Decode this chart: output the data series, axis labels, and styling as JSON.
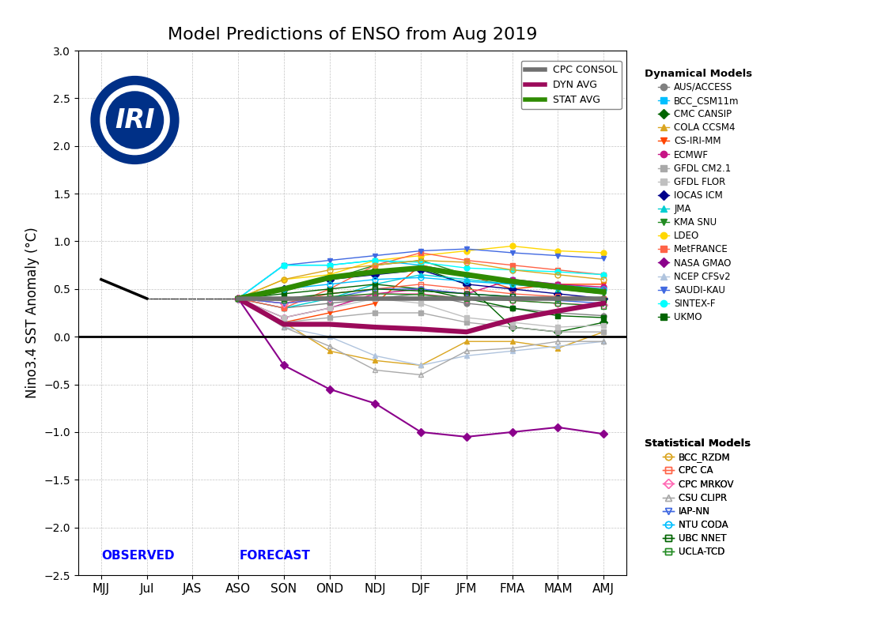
{
  "title": "Model Predictions of ENSO from Aug 2019",
  "ylabel": "Nino3.4 SST Anomaly (°C)",
  "xticks": [
    "MJJ",
    "Jul",
    "JAS",
    "ASO",
    "SON",
    "OND",
    "NDJ",
    "DJF",
    "JFM",
    "FMA",
    "MAM",
    "AMJ"
  ],
  "ylim": [
    -2.5,
    3.0
  ],
  "yticks": [
    -2.5,
    -2.0,
    -1.5,
    -1.0,
    -0.5,
    0.0,
    0.5,
    1.0,
    1.5,
    2.0,
    2.5,
    3.0
  ],
  "cpc_consol": [
    0.4,
    0.4,
    0.4,
    0.4,
    0.4,
    0.4,
    0.4,
    0.4,
    0.4
  ],
  "dyn_avg": [
    0.4,
    0.13,
    0.13,
    0.1,
    0.08,
    0.05,
    0.18,
    0.27,
    0.35
  ],
  "stat_avg": [
    0.4,
    0.5,
    0.62,
    0.68,
    0.72,
    0.65,
    0.58,
    0.52,
    0.47
  ],
  "models": {
    "AUS_ACCESS": {
      "color": "#808080",
      "marker": "o",
      "lw": 1.0,
      "filled": true,
      "data": [
        0.4,
        0.3,
        0.35,
        0.4,
        0.45,
        0.35,
        0.3,
        0.25,
        0.22
      ]
    },
    "BCC_CSM11m": {
      "color": "#00BFFF",
      "marker": "s",
      "lw": 1.0,
      "filled": true,
      "data": [
        0.4,
        0.75,
        0.75,
        0.8,
        0.75,
        0.65,
        0.6,
        0.55,
        0.5
      ]
    },
    "CMC_CANSIP": {
      "color": "#006400",
      "marker": "D",
      "lw": 1.0,
      "filled": true,
      "data": [
        0.4,
        0.5,
        0.6,
        0.7,
        0.72,
        0.55,
        0.1,
        0.05,
        0.15
      ]
    },
    "COLA_CCSM4": {
      "color": "#DAA520",
      "marker": "^",
      "lw": 1.0,
      "filled": true,
      "data": [
        0.4,
        0.15,
        -0.15,
        -0.25,
        -0.3,
        -0.05,
        -0.05,
        -0.12,
        0.05
      ]
    },
    "CS_IRI_MM": {
      "color": "#FF4500",
      "marker": "v",
      "lw": 1.0,
      "filled": true,
      "data": [
        0.4,
        0.15,
        0.25,
        0.35,
        0.75,
        0.65,
        0.5,
        0.55,
        0.55
      ]
    },
    "ECMWF": {
      "color": "#C71585",
      "marker": "o",
      "lw": 1.0,
      "filled": true,
      "data": [
        0.4,
        0.2,
        0.3,
        0.45,
        0.5,
        0.45,
        0.6,
        0.55,
        0.52
      ]
    },
    "GFDL_CM21": {
      "color": "#A9A9A9",
      "marker": "s",
      "lw": 1.0,
      "filled": true,
      "data": [
        0.4,
        0.15,
        0.2,
        0.25,
        0.25,
        0.15,
        0.1,
        0.05,
        0.05
      ]
    },
    "GFDL_FLOR": {
      "color": "#C0C0C0",
      "marker": "s",
      "lw": 1.0,
      "filled": true,
      "data": [
        0.4,
        0.2,
        0.3,
        0.4,
        0.35,
        0.2,
        0.15,
        0.1,
        0.12
      ]
    },
    "IOCAS_ICM": {
      "color": "#00008B",
      "marker": "D",
      "lw": 1.0,
      "filled": true,
      "data": [
        0.4,
        0.5,
        0.6,
        0.65,
        0.7,
        0.55,
        0.5,
        0.45,
        0.4
      ]
    },
    "JMA": {
      "color": "#00CED1",
      "marker": "^",
      "lw": 1.0,
      "filled": true,
      "data": [
        0.4,
        0.3,
        0.4,
        0.55,
        0.65,
        0.6,
        0.55,
        0.5,
        0.48
      ]
    },
    "KMA_SNU": {
      "color": "#228B22",
      "marker": "v",
      "lw": 1.0,
      "filled": true,
      "data": [
        0.4,
        0.5,
        0.6,
        0.75,
        0.8,
        0.65,
        0.55,
        0.5,
        0.45
      ]
    },
    "LDEO": {
      "color": "#FFD700",
      "marker": "o",
      "lw": 1.0,
      "filled": true,
      "data": [
        0.4,
        0.6,
        0.65,
        0.8,
        0.85,
        0.9,
        0.95,
        0.9,
        0.88
      ]
    },
    "MetFRANCE": {
      "color": "#FF6347",
      "marker": "s",
      "lw": 1.0,
      "filled": true,
      "data": [
        0.4,
        0.3,
        0.5,
        0.75,
        0.88,
        0.8,
        0.75,
        0.7,
        0.65
      ]
    },
    "NASA_GMAO": {
      "color": "#8B008B",
      "marker": "D",
      "lw": 1.5,
      "filled": true,
      "data": [
        0.4,
        -0.3,
        -0.55,
        -0.7,
        -1.0,
        -1.05,
        -1.0,
        -0.95,
        -1.02
      ]
    },
    "NCEP_CFSv2": {
      "color": "#B0C4DE",
      "marker": "^",
      "lw": 1.0,
      "filled": true,
      "data": [
        0.4,
        0.1,
        0.0,
        -0.2,
        -0.3,
        -0.2,
        -0.15,
        -0.1,
        -0.05
      ]
    },
    "SAUDI_KAU": {
      "color": "#4169E1",
      "marker": "v",
      "lw": 1.0,
      "filled": true,
      "data": [
        0.4,
        0.75,
        0.8,
        0.85,
        0.9,
        0.92,
        0.88,
        0.85,
        0.82
      ]
    },
    "SINTEX_F": {
      "color": "#00FFFF",
      "marker": "o",
      "lw": 1.0,
      "filled": true,
      "data": [
        0.4,
        0.75,
        0.75,
        0.8,
        0.78,
        0.72,
        0.7,
        0.68,
        0.65
      ]
    },
    "UKMO": {
      "color": "#006400",
      "marker": "s",
      "lw": 1.0,
      "filled": true,
      "data": [
        0.4,
        0.45,
        0.5,
        0.55,
        0.5,
        0.4,
        0.3,
        0.22,
        0.2
      ]
    }
  },
  "stat_models": {
    "BCC_RZDM": {
      "color": "#DAA520",
      "marker": "o",
      "lw": 1.0,
      "data": [
        0.4,
        0.6,
        0.7,
        0.75,
        0.8,
        0.78,
        0.7,
        0.65,
        0.6
      ]
    },
    "CPC_CA": {
      "color": "#FF6347",
      "marker": "s",
      "lw": 1.0,
      "data": [
        0.4,
        0.35,
        0.45,
        0.5,
        0.55,
        0.5,
        0.45,
        0.42,
        0.4
      ]
    },
    "CPC_MRKOV": {
      "color": "#FF69B4",
      "marker": "D",
      "lw": 1.0,
      "data": [
        0.4,
        0.35,
        0.4,
        0.45,
        0.45,
        0.4,
        0.38,
        0.35,
        0.33
      ]
    },
    "CSU_CLIPR": {
      "color": "#A9A9A9",
      "marker": "^",
      "lw": 1.0,
      "data": [
        0.4,
        0.1,
        -0.1,
        -0.35,
        -0.4,
        -0.15,
        -0.12,
        -0.05,
        -0.05
      ]
    },
    "IAP_NN": {
      "color": "#4169E1",
      "marker": "v",
      "lw": 1.0,
      "data": [
        0.4,
        0.35,
        0.4,
        0.5,
        0.5,
        0.45,
        0.42,
        0.38,
        0.35
      ]
    },
    "NTU_CODA": {
      "color": "#00BFFF",
      "marker": "o",
      "lw": 1.0,
      "data": [
        0.4,
        0.5,
        0.55,
        0.6,
        0.62,
        0.58,
        0.55,
        0.52,
        0.5
      ]
    },
    "UBC_NNET": {
      "color": "#006400",
      "marker": "s",
      "lw": 1.0,
      "data": [
        0.4,
        0.4,
        0.45,
        0.5,
        0.48,
        0.45,
        0.42,
        0.4,
        0.38
      ]
    },
    "UCLA_TCD": {
      "color": "#228B22",
      "marker": "s",
      "lw": 1.0,
      "data": [
        0.4,
        0.38,
        0.42,
        0.45,
        0.44,
        0.4,
        0.38,
        0.35,
        0.32
      ]
    }
  },
  "dyn_legend": [
    [
      "AUS/ACCESS",
      "#808080",
      "o",
      true
    ],
    [
      "BCC_CSM11m",
      "#00BFFF",
      "s",
      true
    ],
    [
      "CMC CANSIP",
      "#006400",
      "D",
      true
    ],
    [
      "COLA CCSM4",
      "#DAA520",
      "^",
      true
    ],
    [
      "CS-IRI-MM",
      "#FF4500",
      "v",
      true
    ],
    [
      "ECMWF",
      "#C71585",
      "o",
      true
    ],
    [
      "GFDL CM2.1",
      "#A9A9A9",
      "s",
      true
    ],
    [
      "GFDL FLOR",
      "#C0C0C0",
      "s",
      true
    ],
    [
      "IOCAS ICM",
      "#00008B",
      "D",
      true
    ],
    [
      "JMA",
      "#00CED1",
      "^",
      true
    ],
    [
      "KMA SNU",
      "#228B22",
      "v",
      true
    ],
    [
      "LDEO",
      "#FFD700",
      "o",
      true
    ],
    [
      "MetFRANCE",
      "#FF6347",
      "s",
      true
    ],
    [
      "NASA GMAO",
      "#8B008B",
      "D",
      true
    ],
    [
      "NCEP CFSv2",
      "#B0C4DE",
      "^",
      true
    ],
    [
      "SAUDI-KAU",
      "#4169E1",
      "v",
      true
    ],
    [
      "SINTEX-F",
      "#00FFFF",
      "o",
      true
    ],
    [
      "UKMO",
      "#006400",
      "s",
      true
    ]
  ],
  "stat_legend": [
    [
      "BCC_RZDM",
      "#DAA520",
      "o"
    ],
    [
      "CPC CA",
      "#FF6347",
      "s"
    ],
    [
      "CPC MRKOV",
      "#FF69B4",
      "D"
    ],
    [
      "CSU CLIPR",
      "#A9A9A9",
      "^"
    ],
    [
      "IAP-NN",
      "#4169E1",
      "v"
    ],
    [
      "NTU CODA",
      "#00BFFF",
      "o"
    ],
    [
      "UBC NNET",
      "#006400",
      "s"
    ],
    [
      "UCLA-TCD",
      "#228B22",
      "s"
    ]
  ]
}
